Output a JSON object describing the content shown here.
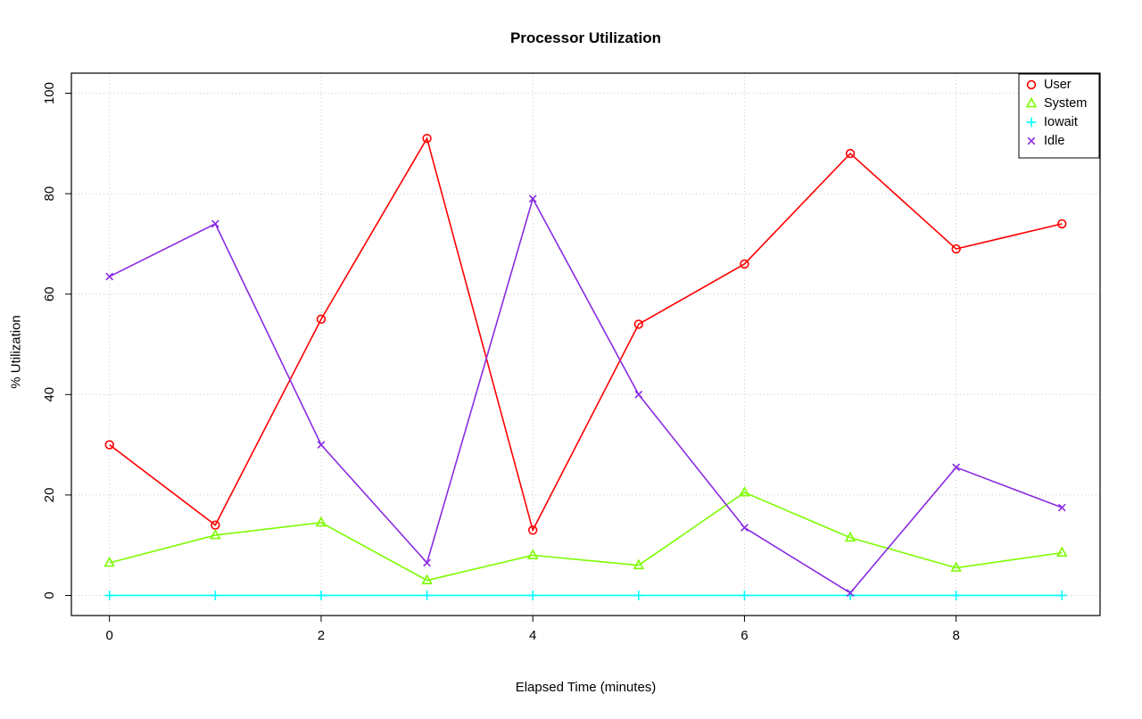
{
  "title": "Processor Utilization",
  "chart_data": {
    "type": "line",
    "title": "Processor Utilization",
    "xlabel": "Elapsed Time (minutes)",
    "ylabel": "% Utilization",
    "x": [
      0,
      1,
      2,
      3,
      4,
      5,
      6,
      7,
      8,
      9
    ],
    "xlim": [
      0,
      9
    ],
    "ylim": [
      0,
      100
    ],
    "x_ticks": [
      0,
      2,
      4,
      6,
      8
    ],
    "y_ticks": [
      0,
      20,
      40,
      60,
      80,
      100
    ],
    "grid": true,
    "grid_color": "#c8c8c8",
    "legend_position": "top-right",
    "series": [
      {
        "name": "User",
        "color": "#ff0000",
        "marker": "circle",
        "values": [
          30,
          14,
          55,
          91,
          13,
          54,
          66,
          88,
          69,
          74
        ]
      },
      {
        "name": "System",
        "color": "#7cfc00",
        "marker": "triangle",
        "values": [
          6.5,
          12,
          14.5,
          3,
          8,
          6,
          20.5,
          11.5,
          5.5,
          8.5
        ]
      },
      {
        "name": "Iowait",
        "color": "#00ffff",
        "marker": "plus",
        "values": [
          0,
          0,
          0,
          0,
          0,
          0,
          0,
          0,
          0,
          0
        ]
      },
      {
        "name": "Idle",
        "color": "#8a2be2",
        "marker": "x",
        "values": [
          63.5,
          74,
          30,
          6.5,
          79,
          40,
          13.5,
          0.5,
          25.5,
          17.5
        ]
      }
    ]
  }
}
